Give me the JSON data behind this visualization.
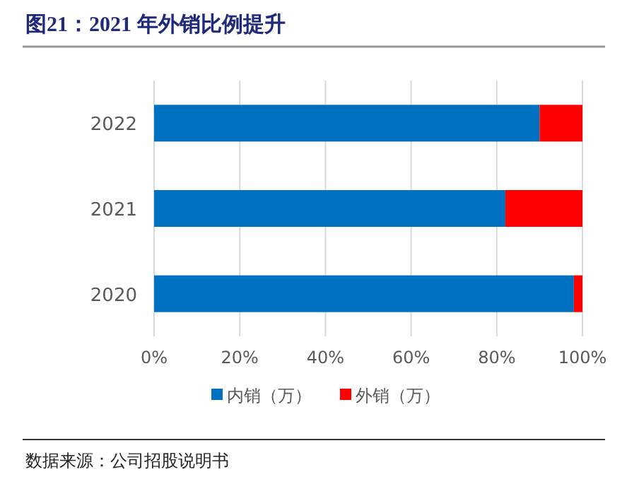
{
  "chart_data": {
    "type": "bar",
    "orientation": "horizontal",
    "stacked": true,
    "title": "图21：2021 年外销比例提升",
    "categories": [
      "2022",
      "2021",
      "2020"
    ],
    "series": [
      {
        "name": "内销（万）",
        "color": "#0070c0",
        "values": [
          90,
          82,
          98
        ]
      },
      {
        "name": "外销（万）",
        "color": "#ff0000",
        "values": [
          10,
          18,
          2
        ]
      }
    ],
    "xlim": [
      0,
      100
    ],
    "xticks": [
      {
        "value": 0,
        "label": "0%"
      },
      {
        "value": 20,
        "label": "20%"
      },
      {
        "value": 40,
        "label": "40%"
      },
      {
        "value": 60,
        "label": "60%"
      },
      {
        "value": 80,
        "label": "80%"
      },
      {
        "value": 100,
        "label": "100%"
      }
    ],
    "grid": "x",
    "legend": "bottom",
    "annotations": [
      "数据来源：公司招股说明书"
    ]
  }
}
